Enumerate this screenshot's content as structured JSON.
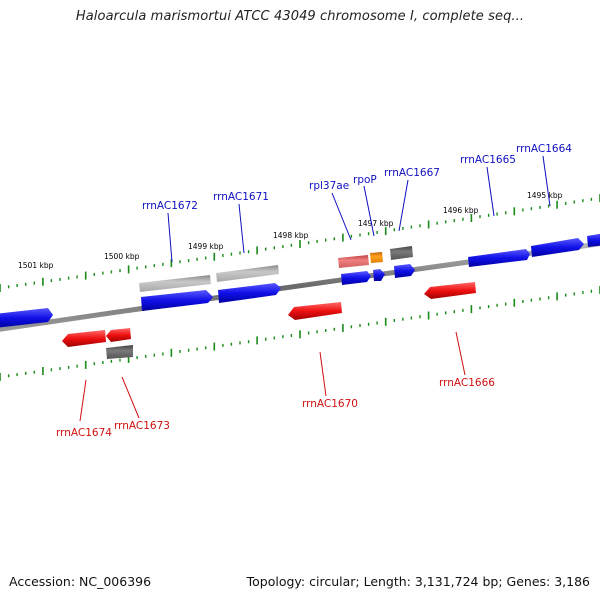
{
  "title": "Haloarcula marismortui ATCC 43049 chromosome I, complete seq...",
  "footer": {
    "accession": "Accession: NC_006396",
    "topology": "Topology: circular; Length: 3,131,724 bp; Genes: 3,186"
  },
  "colors": {
    "forward_gene": "#1a1ae6",
    "reverse_gene": "#e61010",
    "grey_gene": "#b0b0b0",
    "dark_grey_gene": "#606060",
    "pink_gene": "#e87070",
    "orange_gene": "#f08c00",
    "tick": "#1a8a1a",
    "backbone": "#707070",
    "label_forward": "#1010c0",
    "label_reverse": "#d01010"
  },
  "kbp_labels": [
    "1501 kbp",
    "1500 kbp",
    "1499 kbp",
    "1498 kbp",
    "1497 kbp",
    "1496 kbp",
    "1495 kbp"
  ],
  "gene_labels": {
    "forward": [
      "rrnAC1672",
      "rrnAC1671",
      "rpl37ae",
      "rpoP",
      "rrnAC1667",
      "rrnAC1665",
      "rrnAC1664"
    ],
    "reverse": [
      "rrnAC1674",
      "rrnAC1673",
      "rrnAC1670",
      "rrnAC1666"
    ]
  }
}
